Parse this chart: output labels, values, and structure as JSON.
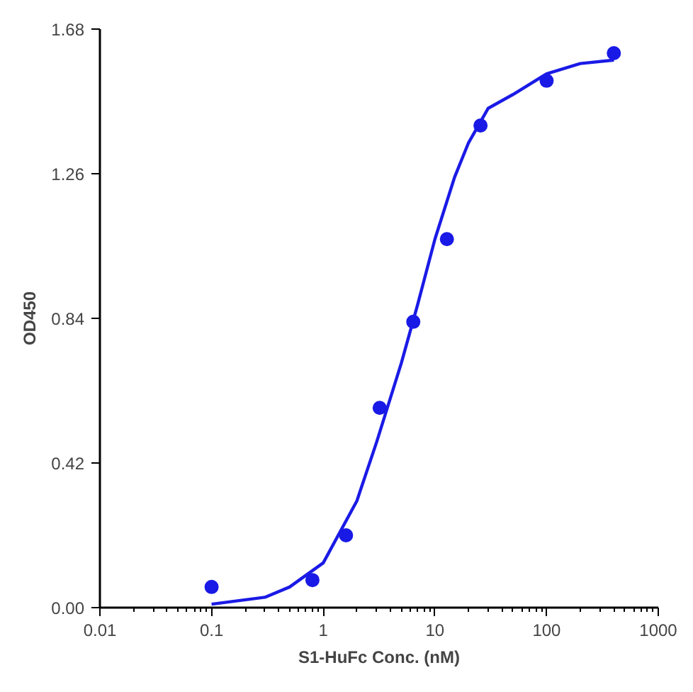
{
  "chart_data": {
    "type": "scatter",
    "xlabel": "S1-HuFc Conc. (nM)",
    "ylabel": "OD450",
    "log": "x",
    "grid": false,
    "marker": "circle",
    "xlim": [
      0.01,
      1000
    ],
    "ylim": [
      0,
      1.68
    ],
    "xticks": [
      0.01,
      0.1,
      1,
      10,
      100,
      1000
    ],
    "yticks": [
      {
        "value": 0,
        "label": "0.00"
      },
      {
        "value": 0.42,
        "label": "0.42"
      },
      {
        "value": 0.84,
        "label": "0.84"
      },
      {
        "value": 1.26,
        "label": "1.26"
      },
      {
        "value": 1.68,
        "label": "1.68"
      }
    ],
    "series": [
      {
        "color": "#1a1ae6",
        "x": [
          0.1,
          0.8,
          1.6,
          3.2,
          6.4,
          12.8,
          25.6,
          100,
          400
        ],
        "values": [
          0.06,
          0.08,
          0.21,
          0.58,
          0.83,
          1.07,
          1.4,
          1.53,
          1.61
        ]
      },
      {
        "type": "line",
        "color": "#1a1ae6",
        "marker": "none",
        "line_style": "solid",
        "x": [
          0.1,
          0.3,
          0.5,
          1,
          2,
          3,
          5,
          7,
          10,
          15,
          20,
          30,
          50,
          100,
          200,
          400
        ],
        "values": [
          0.01,
          0.03,
          0.06,
          0.13,
          0.31,
          0.48,
          0.71,
          0.88,
          1.07,
          1.25,
          1.35,
          1.45,
          1.49,
          1.55,
          1.58,
          1.59
        ]
      }
    ]
  }
}
